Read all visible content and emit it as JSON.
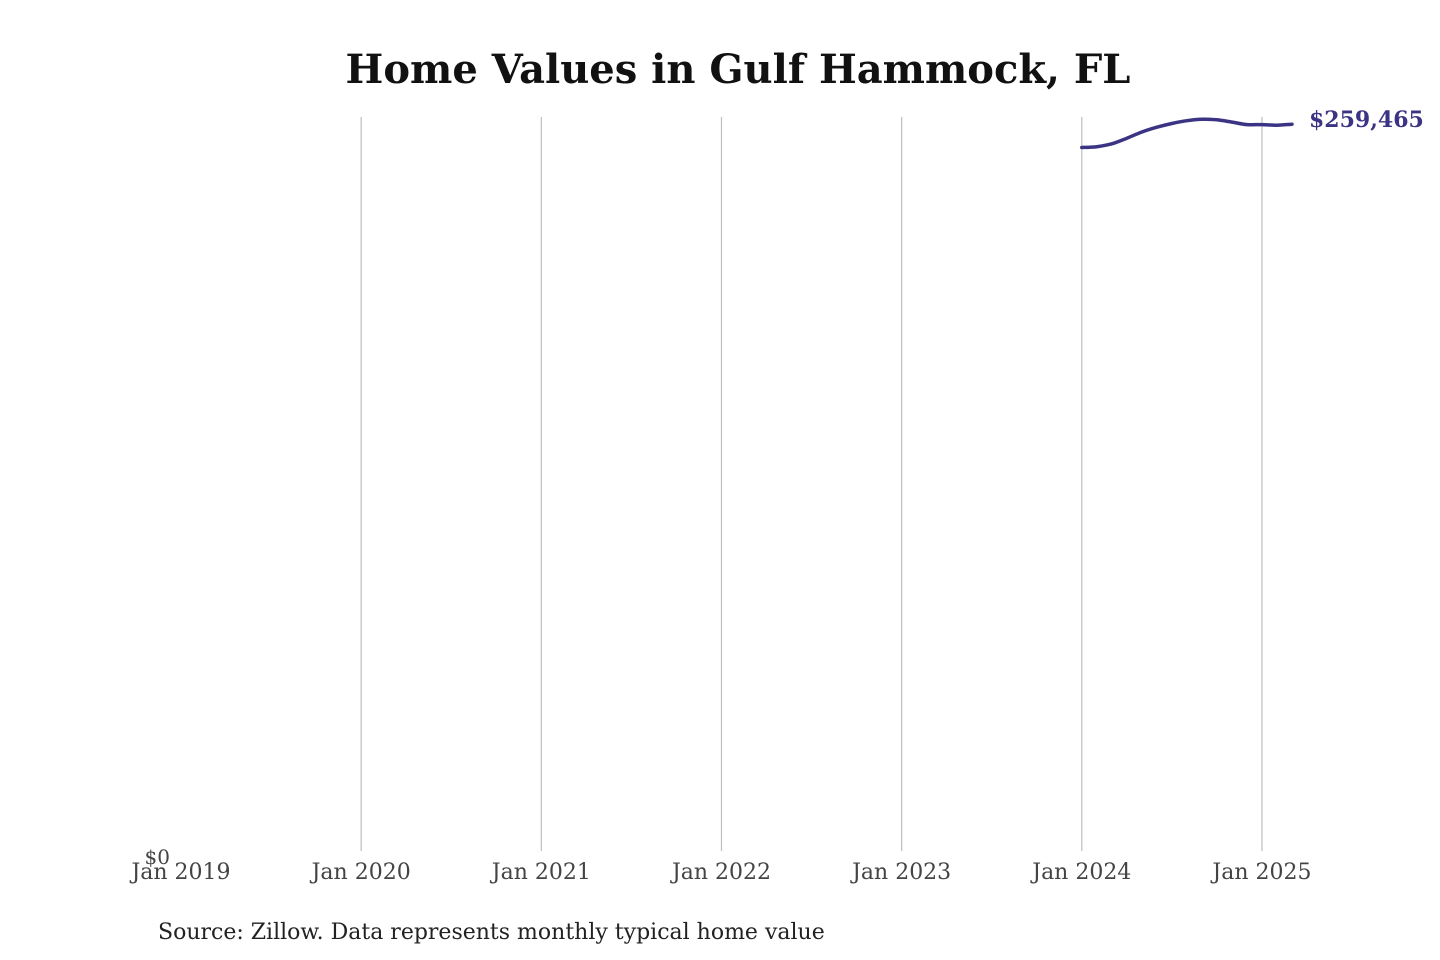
{
  "chart_data": {
    "type": "line",
    "title": "Home Values in Gulf Hammock, FL",
    "source_note": "Source: Zillow. Data represents monthly typical home value",
    "y_tick_label": "$0",
    "end_label": "$259,465",
    "line_color": "#3b3485",
    "x_ticks": [
      "Jan 2019",
      "Jan 2020",
      "Jan 2021",
      "Jan 2022",
      "Jan 2023",
      "Jan 2024",
      "Jan 2025"
    ],
    "xlim": [
      "2019-01",
      "2025-03"
    ],
    "ylim": [
      0,
      262000
    ],
    "grid": "vertical",
    "series": [
      {
        "x": [
          "2024-01",
          "2024-02",
          "2024-03",
          "2024-04",
          "2024-05",
          "2024-06",
          "2024-07",
          "2024-08",
          "2024-09",
          "2024-10",
          "2024-11",
          "2024-12",
          "2025-01",
          "2025-02",
          "2025-03"
        ],
        "values": [
          251200,
          251500,
          252500,
          254500,
          256700,
          258400,
          259700,
          260700,
          261200,
          261000,
          260200,
          259300,
          259300,
          259100,
          259465
        ]
      }
    ]
  }
}
